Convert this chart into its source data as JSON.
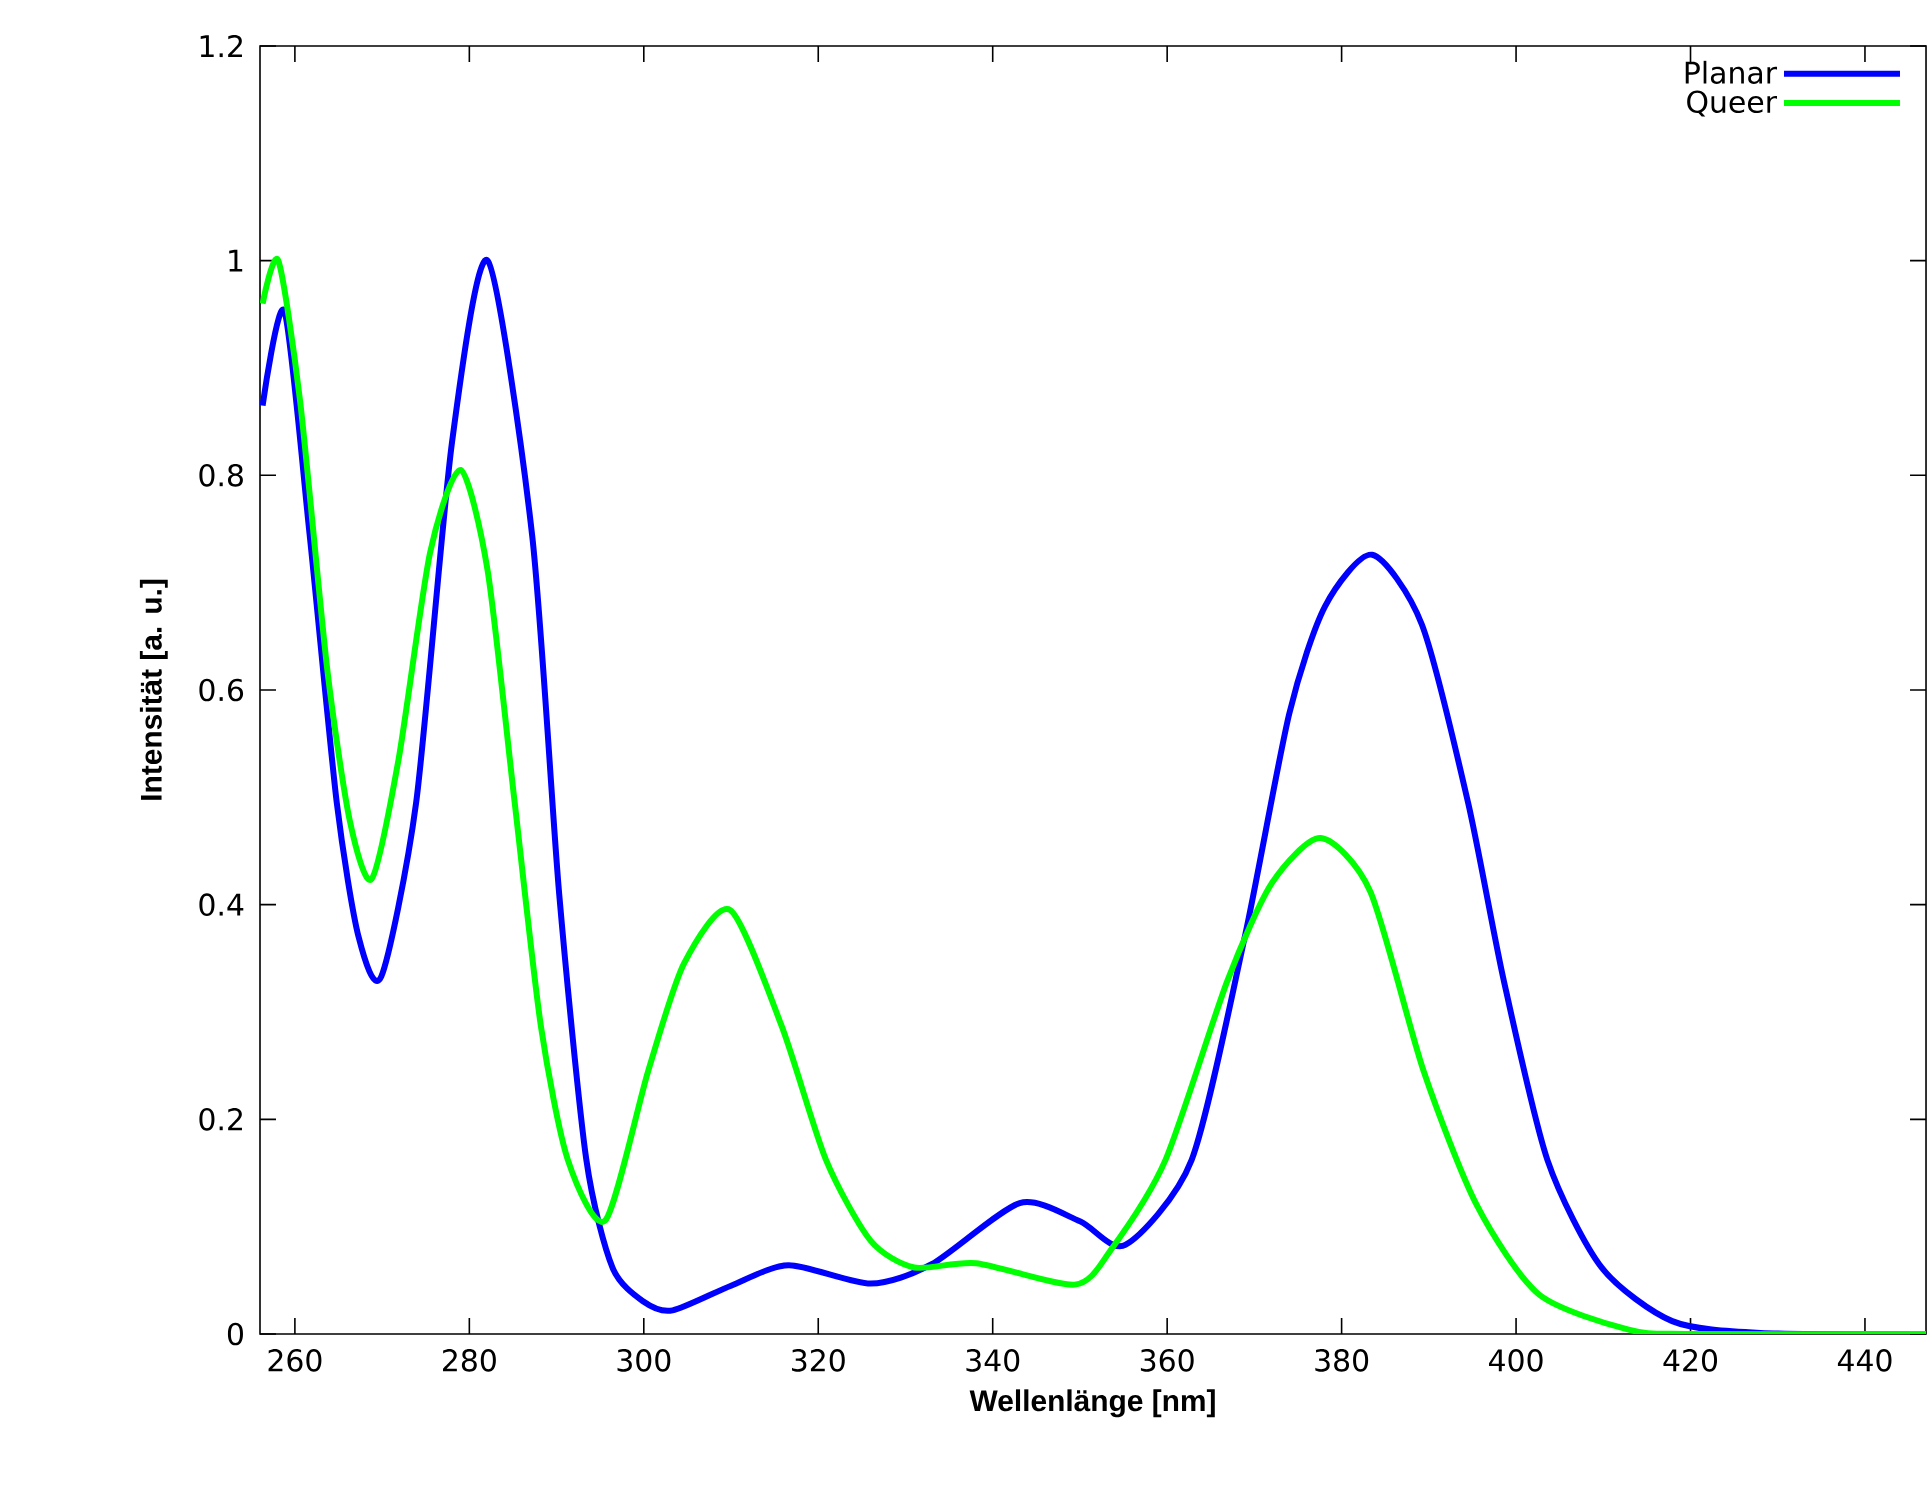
{
  "chart_data": {
    "type": "line",
    "xlabel": "Wellenlänge [nm]",
    "ylabel": "Intensität [a. u.]",
    "xlim": [
      256,
      447
    ],
    "ylim": [
      0,
      1.2
    ],
    "xticks": [
      260,
      280,
      300,
      320,
      340,
      360,
      380,
      400,
      420,
      440
    ],
    "yticks": [
      0,
      0.2,
      0.4,
      0.6,
      0.8,
      1,
      1.2
    ],
    "legend": "top right",
    "grid": false,
    "marker": "none",
    "line_style": "solid",
    "series": [
      {
        "name": "Planar",
        "color": "#0000ff",
        "x": [
          256.3,
          258.8,
          261.7,
          264.8,
          267.3,
          269.9,
          273.9,
          278.0,
          282.1,
          287.2,
          290.3,
          293.4,
          296.4,
          300,
          303.3,
          310,
          316.6,
          326.0,
          333,
          343.1,
          350,
          355.2,
          362.8,
          368.9,
          374.0,
          378.1,
          383.5,
          389.2,
          394.5,
          398.6,
          403.6,
          409.8,
          417.9,
          428,
          447
        ],
        "values": [
          0.865,
          0.953,
          0.744,
          0.495,
          0.37,
          0.333,
          0.495,
          0.83,
          1.0,
          0.744,
          0.41,
          0.163,
          0.062,
          0.03,
          0.022,
          0.045,
          0.064,
          0.047,
          0.065,
          0.122,
          0.105,
          0.083,
          0.162,
          0.37,
          0.578,
          0.678,
          0.726,
          0.661,
          0.495,
          0.329,
          0.162,
          0.062,
          0.012,
          0.001,
          0
        ]
      },
      {
        "name": "Queer",
        "color": "#00ff00",
        "x": [
          256.3,
          258.1,
          260.6,
          263.7,
          266.3,
          268.8,
          271.9,
          275.5,
          279,
          282.1,
          285.2,
          288.2,
          291.3,
          295.6,
          300.5,
          304.6,
          309.9,
          315.8,
          320.9,
          326.0,
          331.0,
          338.1,
          349.4,
          353.6,
          359.8,
          366.9,
          372,
          377.6,
          383.3,
          389.4,
          395.5,
          402.6,
          412.9,
          420,
          447
        ],
        "values": [
          0.96,
          1.0,
          0.869,
          0.62,
          0.478,
          0.424,
          0.536,
          0.728,
          0.805,
          0.711,
          0.495,
          0.287,
          0.162,
          0.106,
          0.245,
          0.345,
          0.395,
          0.287,
          0.162,
          0.087,
          0.062,
          0.066,
          0.046,
          0.079,
          0.162,
          0.329,
          0.42,
          0.462,
          0.412,
          0.245,
          0.12,
          0.037,
          0.004,
          0,
          0
        ]
      }
    ]
  }
}
